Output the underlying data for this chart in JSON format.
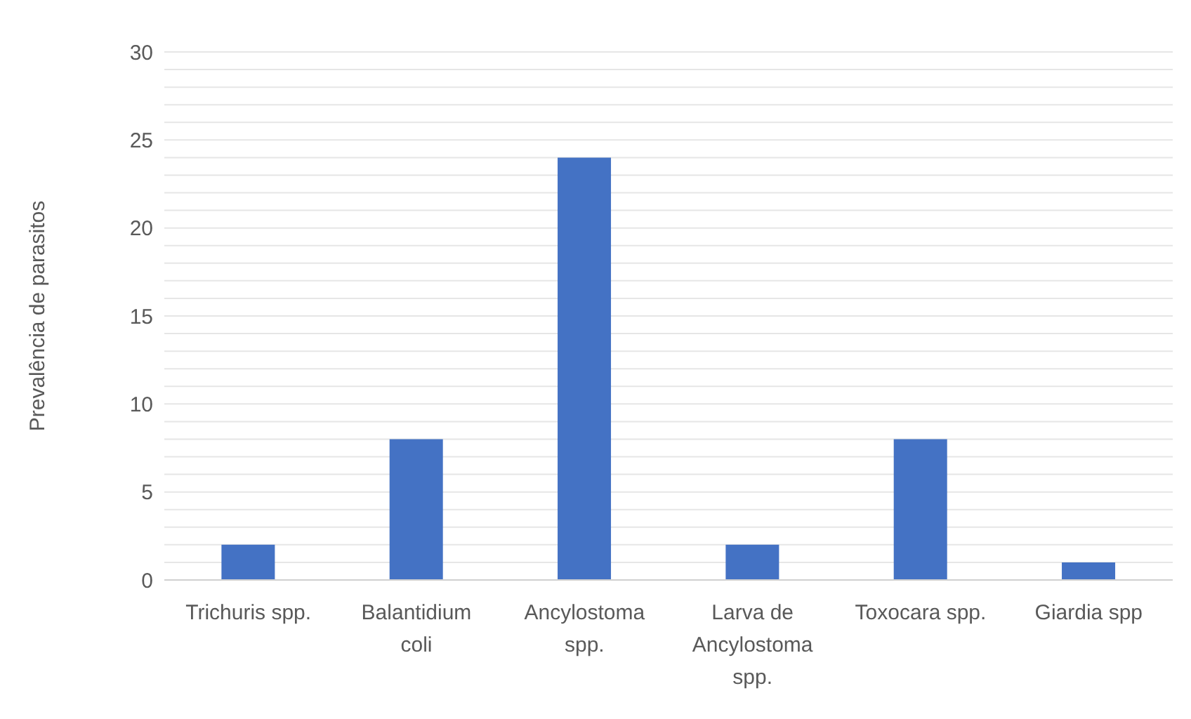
{
  "chart_data": {
    "type": "bar",
    "ylabel": "Prevalência de parasitos",
    "categories": [
      "Trichuris spp.",
      "Balantidium coli",
      "Ancylostoma spp.",
      "Larva de Ancylostoma spp.",
      "Toxocara spp.",
      "Giardia spp"
    ],
    "values": [
      2,
      8,
      24,
      2,
      8,
      1
    ],
    "color": "#4472c4",
    "ylim": [
      0,
      30
    ],
    "yticks": [
      0,
      {
        "value": 1,
        "label": null
      },
      {
        "value": 2,
        "label": null
      },
      {
        "value": 3,
        "label": null
      },
      {
        "value": 4,
        "label": null
      },
      5,
      {
        "value": 6,
        "label": null
      },
      {
        "value": 7,
        "label": null
      },
      {
        "value": 8,
        "label": null
      },
      {
        "value": 9,
        "label": null
      },
      10,
      {
        "value": 11,
        "label": null
      },
      {
        "value": 12,
        "label": null
      },
      {
        "value": 13,
        "label": null
      },
      {
        "value": 14,
        "label": null
      },
      15,
      {
        "value": 16,
        "label": null
      },
      {
        "value": 17,
        "label": null
      },
      {
        "value": 18,
        "label": null
      },
      {
        "value": 19,
        "label": null
      },
      20,
      {
        "value": 21,
        "label": null
      },
      {
        "value": 22,
        "label": null
      },
      {
        "value": 23,
        "label": null
      },
      {
        "value": 24,
        "label": null
      },
      25,
      {
        "value": 26,
        "label": null
      },
      {
        "value": 27,
        "label": null
      },
      {
        "value": 28,
        "label": null
      },
      {
        "value": 29,
        "label": null
      },
      30
    ],
    "grid": "y"
  }
}
